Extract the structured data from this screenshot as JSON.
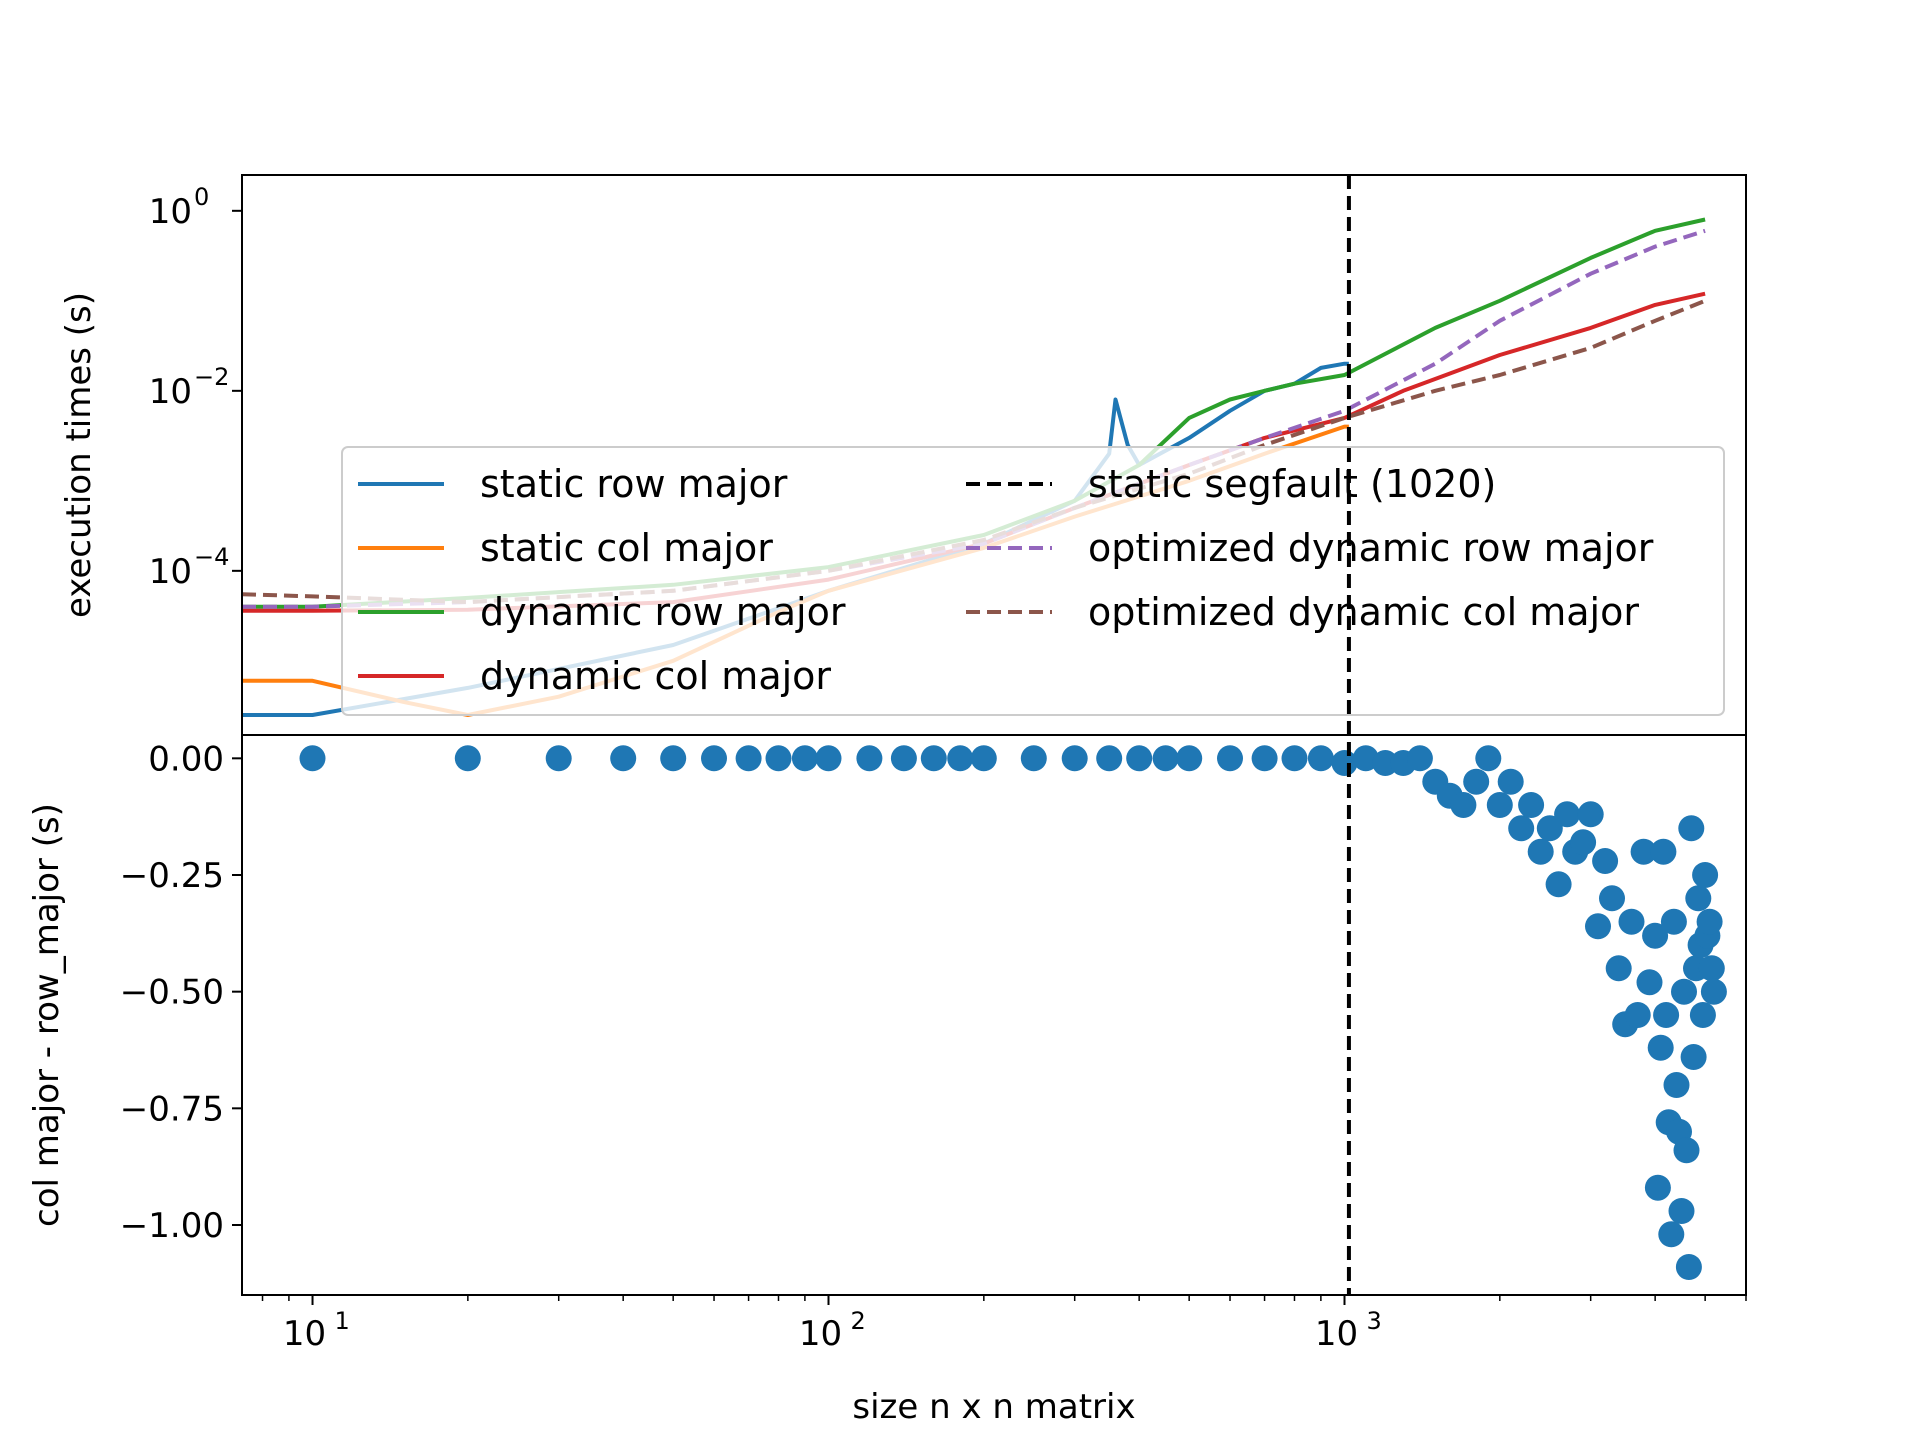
{
  "chart_data": [
    {
      "type": "line",
      "ylabel": "execution times (s)",
      "xscale": "log",
      "yscale": "log",
      "xlim": [
        7.3,
        6000
      ],
      "ylim": [
        1.5e-06,
        2.5
      ],
      "x_ticks": [
        "10^1",
        "10^2",
        "10^3"
      ],
      "y_ticks": [
        {
          "value": 1,
          "base": "10",
          "exp": "0"
        },
        {
          "value": 0.01,
          "base": "10",
          "exp": "−2"
        },
        {
          "value": 0.0001,
          "base": "10",
          "exp": "−4"
        }
      ],
      "legend_position": "lower-right, semi-transparent",
      "vline": {
        "x": 1020,
        "label": "static segfault (1020)",
        "color": "#000000",
        "style": "dashed"
      },
      "series": [
        {
          "name": "static row major",
          "color": "#1f77b4",
          "style": "solid",
          "x": [
            7.3,
            10,
            20,
            50,
            100,
            200,
            300,
            350,
            360,
            380,
            400,
            500,
            600,
            700,
            800,
            900,
            1000,
            1020
          ],
          "y": [
            2.5e-06,
            2.5e-06,
            5e-06,
            1.5e-05,
            6e-05,
            0.0002,
            0.0006,
            0.002,
            0.008,
            0.0025,
            0.0015,
            0.003,
            0.006,
            0.01,
            0.012,
            0.018,
            0.02,
            0.02
          ]
        },
        {
          "name": "static col major",
          "color": "#ff7f0e",
          "style": "solid",
          "x": [
            7.3,
            10,
            15,
            20,
            30,
            50,
            80,
            100,
            200,
            300,
            500,
            700,
            1000,
            1020
          ],
          "y": [
            6e-06,
            6e-06,
            3.5e-06,
            2.5e-06,
            4e-06,
            1e-05,
            3.5e-05,
            6e-05,
            0.00018,
            0.0004,
            0.001,
            0.002,
            0.004,
            0.004
          ]
        },
        {
          "name": "dynamic row major",
          "color": "#2ca02c",
          "style": "solid",
          "x": [
            7.3,
            10,
            20,
            50,
            100,
            200,
            300,
            400,
            500,
            600,
            700,
            800,
            1000,
            1500,
            2000,
            3000,
            4000,
            5000
          ],
          "y": [
            4e-05,
            4e-05,
            5e-05,
            7e-05,
            0.00011,
            0.00025,
            0.0006,
            0.0015,
            0.005,
            0.008,
            0.01,
            0.012,
            0.015,
            0.05,
            0.1,
            0.3,
            0.6,
            0.8
          ]
        },
        {
          "name": "dynamic col major",
          "color": "#d62728",
          "style": "solid",
          "x": [
            7.3,
            10,
            20,
            50,
            100,
            200,
            300,
            500,
            700,
            1000,
            1300,
            2000,
            3000,
            4000,
            5000
          ],
          "y": [
            3.6e-05,
            3.6e-05,
            3.7e-05,
            4.5e-05,
            8e-05,
            0.0002,
            0.0005,
            0.0015,
            0.003,
            0.005,
            0.01,
            0.025,
            0.05,
            0.09,
            0.12
          ]
        },
        {
          "name": "optimized dynamic row major",
          "color": "#9467bd",
          "style": "dashed",
          "x": [
            7.3,
            10,
            20,
            50,
            100,
            200,
            300,
            500,
            700,
            1000,
            1500,
            2000,
            3000,
            4000,
            5000
          ],
          "y": [
            4e-05,
            4e-05,
            4.5e-05,
            6e-05,
            0.0001,
            0.0002,
            0.0005,
            0.0015,
            0.003,
            0.006,
            0.02,
            0.06,
            0.2,
            0.4,
            0.6
          ]
        },
        {
          "name": "optimized dynamic col major",
          "color": "#8c564b",
          "style": "dashed",
          "x": [
            7.3,
            10,
            20,
            50,
            100,
            200,
            300,
            500,
            700,
            1000,
            1500,
            2000,
            3000,
            4000,
            5000
          ],
          "y": [
            5.5e-05,
            5.2e-05,
            4.5e-05,
            6e-05,
            0.0001,
            0.00022,
            0.0005,
            0.0012,
            0.0025,
            0.005,
            0.01,
            0.015,
            0.03,
            0.06,
            0.1
          ]
        }
      ]
    },
    {
      "type": "scatter",
      "xlabel": "size n x n matrix",
      "ylabel": "col major - row_major (s)",
      "xscale": "log",
      "xlim": [
        7.3,
        6000
      ],
      "ylim": [
        -1.15,
        0.05
      ],
      "x_ticks": [
        "10^1",
        "10^2",
        "10^3"
      ],
      "y_ticks": [
        "0.00",
        "−0.25",
        "−0.50",
        "−0.75",
        "−1.00"
      ],
      "y_tick_values": [
        0,
        -0.25,
        -0.5,
        -0.75,
        -1.0
      ],
      "color": "#1f77b4",
      "points": [
        [
          10,
          0
        ],
        [
          20,
          0
        ],
        [
          30,
          0
        ],
        [
          40,
          0
        ],
        [
          50,
          0
        ],
        [
          60,
          0
        ],
        [
          70,
          0
        ],
        [
          80,
          0
        ],
        [
          90,
          0
        ],
        [
          100,
          0
        ],
        [
          120,
          0
        ],
        [
          140,
          0
        ],
        [
          160,
          0
        ],
        [
          180,
          0
        ],
        [
          200,
          0
        ],
        [
          250,
          0
        ],
        [
          300,
          0
        ],
        [
          350,
          0
        ],
        [
          400,
          0
        ],
        [
          450,
          0
        ],
        [
          500,
          0
        ],
        [
          600,
          0
        ],
        [
          700,
          0
        ],
        [
          800,
          0
        ],
        [
          900,
          0
        ],
        [
          1000,
          -0.01
        ],
        [
          1100,
          0.0
        ],
        [
          1200,
          -0.01
        ],
        [
          1300,
          -0.01
        ],
        [
          1400,
          0.0
        ],
        [
          1500,
          -0.05
        ],
        [
          1600,
          -0.08
        ],
        [
          1700,
          -0.1
        ],
        [
          1800,
          -0.05
        ],
        [
          1900,
          0.0
        ],
        [
          2000,
          -0.1
        ],
        [
          2100,
          -0.05
        ],
        [
          2200,
          -0.15
        ],
        [
          2300,
          -0.1
        ],
        [
          2400,
          -0.2
        ],
        [
          2500,
          -0.15
        ],
        [
          2600,
          -0.27
        ],
        [
          2700,
          -0.12
        ],
        [
          2800,
          -0.2
        ],
        [
          2900,
          -0.18
        ],
        [
          3000,
          -0.12
        ],
        [
          3100,
          -0.36
        ],
        [
          3200,
          -0.22
        ],
        [
          3300,
          -0.3
        ],
        [
          3400,
          -0.45
        ],
        [
          3500,
          -0.57
        ],
        [
          3600,
          -0.35
        ],
        [
          3700,
          -0.55
        ],
        [
          3800,
          -0.2
        ],
        [
          3900,
          -0.48
        ],
        [
          4000,
          -0.38
        ],
        [
          4050,
          -0.92
        ],
        [
          4100,
          -0.62
        ],
        [
          4150,
          -0.2
        ],
        [
          4200,
          -0.55
        ],
        [
          4250,
          -0.78
        ],
        [
          4300,
          -1.02
        ],
        [
          4350,
          -0.35
        ],
        [
          4400,
          -0.7
        ],
        [
          4450,
          -0.8
        ],
        [
          4500,
          -0.97
        ],
        [
          4550,
          -0.5
        ],
        [
          4600,
          -0.84
        ],
        [
          4650,
          -1.09
        ],
        [
          4700,
          -0.15
        ],
        [
          4750,
          -0.64
        ],
        [
          4800,
          -0.45
        ],
        [
          4850,
          -0.3
        ],
        [
          4900,
          -0.4
        ],
        [
          4950,
          -0.55
        ],
        [
          5000,
          -0.25
        ],
        [
          5050,
          -0.38
        ],
        [
          5100,
          -0.35
        ],
        [
          5150,
          -0.45
        ],
        [
          5200,
          -0.5
        ]
      ]
    }
  ]
}
